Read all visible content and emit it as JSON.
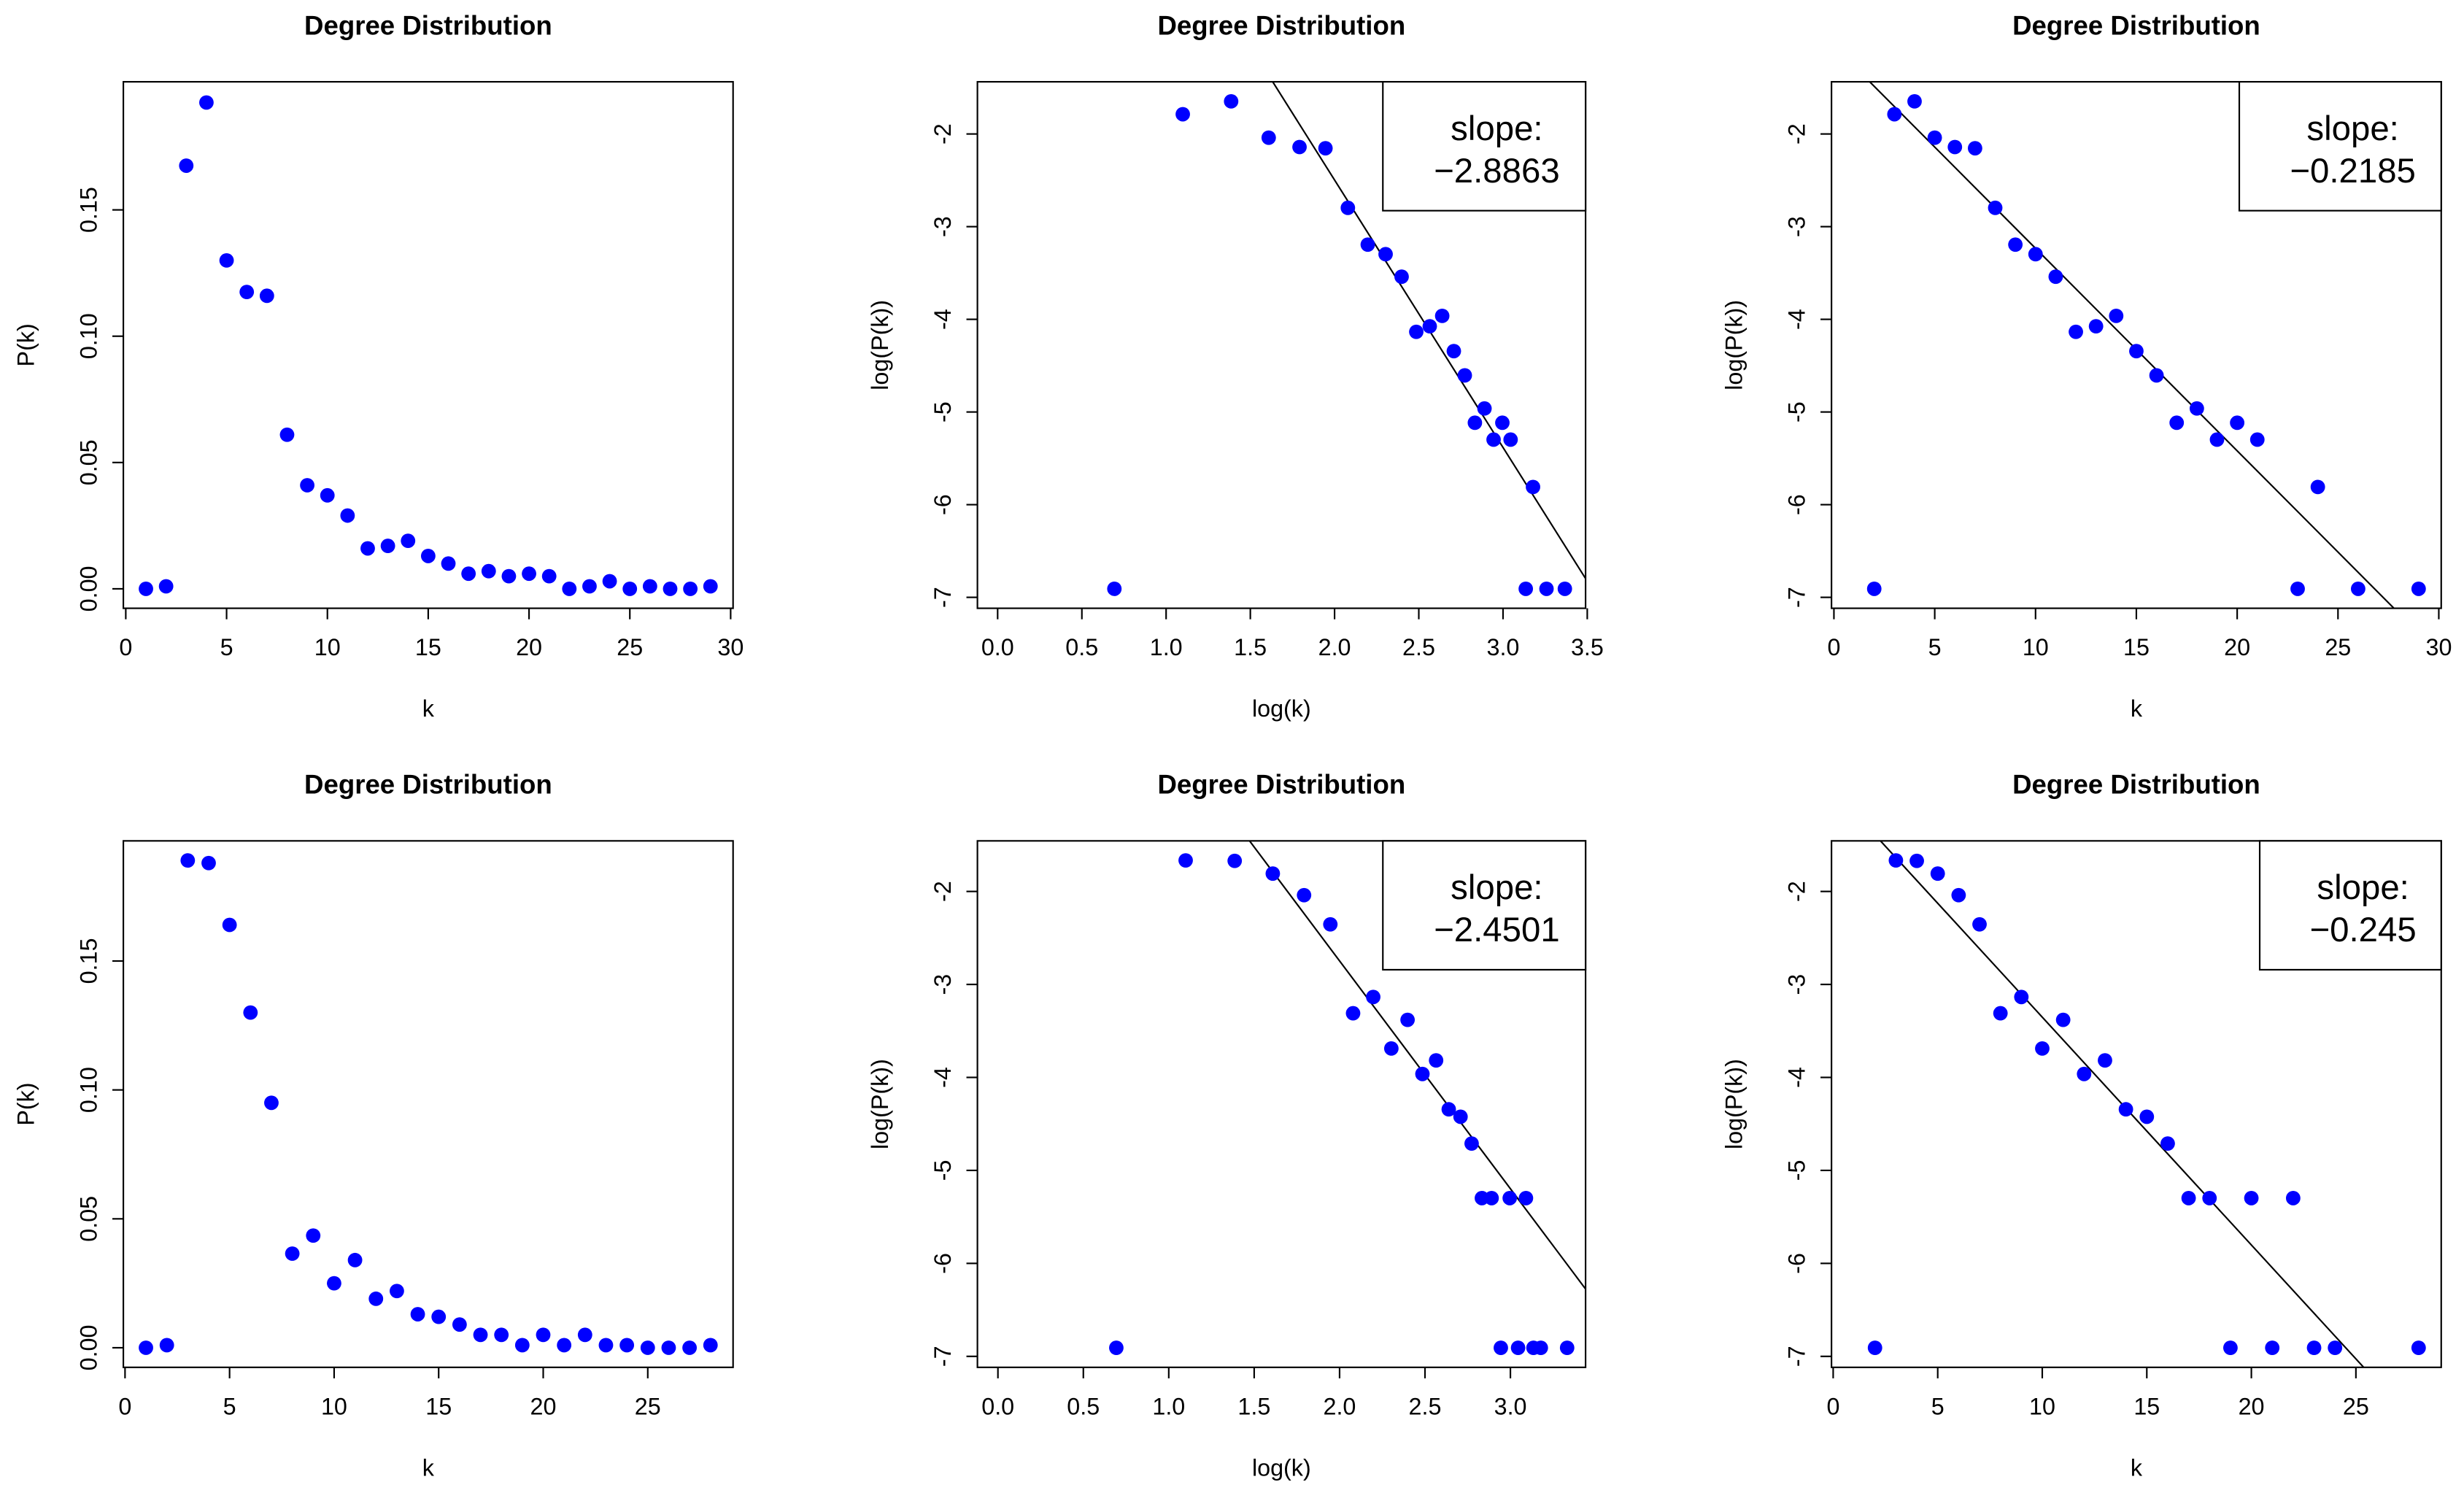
{
  "chart_data": [
    {
      "type": "scatter",
      "title": "Degree Distribution",
      "x_label": "k",
      "y_label": "P(k)",
      "color": "#0000ff",
      "x": [
        1,
        2,
        3,
        4,
        5,
        6,
        7,
        8,
        9,
        10,
        11,
        12,
        13,
        14,
        15,
        16,
        17,
        18,
        19,
        20,
        21,
        22,
        23,
        24,
        25,
        26,
        27,
        28,
        29
      ],
      "y": [
        0,
        0.001,
        0.1675,
        0.1925,
        0.13,
        0.1175,
        0.116,
        0.061,
        0.041,
        0.037,
        0.029,
        0.016,
        0.017,
        0.019,
        0.013,
        0.01,
        0.006,
        0.007,
        0.005,
        0.006,
        0.005,
        0,
        0.001,
        0.003,
        0,
        0.001,
        0,
        0,
        0.001
      ],
      "xlim": [
        -0.12,
        30.12
      ],
      "ylim": [
        -0.0077,
        0.2007
      ],
      "xticks": [
        0,
        5,
        10,
        15,
        20,
        25,
        30
      ],
      "yticks": [
        {
          "value": 0,
          "label": "0.00"
        },
        {
          "value": 0.05,
          "label": "0.05"
        },
        {
          "value": 0.1,
          "label": "0.10"
        },
        {
          "value": 0.15,
          "label": "0.15"
        }
      ]
    },
    {
      "type": "scatter",
      "title": "Degree Distribution",
      "x_label": "log(k)",
      "y_label": "log(P(k))",
      "color": "#0000ff",
      "x": [
        0.693,
        1.099,
        1.386,
        1.609,
        1.792,
        1.946,
        2.079,
        2.197,
        2.303,
        2.398,
        2.485,
        2.565,
        2.639,
        2.708,
        2.773,
        2.833,
        2.89,
        2.944,
        2.996,
        3.045,
        3.135,
        3.178,
        3.258,
        3.367
      ],
      "y": [
        -6.908,
        -1.787,
        -1.648,
        -2.04,
        -2.141,
        -2.154,
        -2.797,
        -3.194,
        -3.297,
        -3.54,
        -4.135,
        -4.075,
        -3.963,
        -4.343,
        -4.605,
        -5.116,
        -4.962,
        -5.298,
        -5.116,
        -5.298,
        -6.908,
        -5.809,
        -6.908,
        -6.908
      ],
      "xlim": [
        -0.12,
        3.49
      ],
      "ylim": [
        -7.118,
        -1.437
      ],
      "xticks": [
        {
          "value": 0,
          "label": "0.0"
        },
        0.5,
        {
          "value": 1,
          "label": "1.0"
        },
        1.5,
        {
          "value": 2,
          "label": "2.0"
        },
        2.5,
        {
          "value": 3,
          "label": "3.0"
        },
        3.5
      ],
      "yticks": [
        -2,
        -3,
        -4,
        -5,
        -6,
        -7
      ],
      "legend_title": "slope:",
      "fit": {
        "slope": -2.8863,
        "intercept": 3.276,
        "label": "−2.8863"
      }
    },
    {
      "type": "scatter",
      "title": "Degree Distribution",
      "x_label": "k",
      "y_label": "log(P(k))",
      "color": "#0000ff",
      "x": [
        2,
        3,
        4,
        5,
        6,
        7,
        8,
        9,
        10,
        11,
        12,
        13,
        14,
        15,
        16,
        17,
        18,
        19,
        20,
        21,
        23,
        24,
        26,
        29
      ],
      "y": [
        -6.908,
        -1.787,
        -1.648,
        -2.04,
        -2.141,
        -2.154,
        -2.797,
        -3.194,
        -3.297,
        -3.54,
        -4.135,
        -4.075,
        -3.963,
        -4.343,
        -4.605,
        -5.116,
        -4.962,
        -5.298,
        -5.116,
        -5.298,
        -6.908,
        -5.809,
        -6.908,
        -6.908
      ],
      "xlim": [
        -0.12,
        30.12
      ],
      "ylim": [
        -7.118,
        -1.437
      ],
      "xticks": [
        0,
        5,
        10,
        15,
        20,
        25,
        30
      ],
      "yticks": [
        -2,
        -3,
        -4,
        -5,
        -6,
        -7
      ],
      "legend_title": "slope:",
      "fit": {
        "slope": -0.2185,
        "intercept": -1.049,
        "label": "−0.2185"
      }
    },
    {
      "type": "scatter",
      "title": "Degree Distribution",
      "x_label": "k",
      "y_label": "P(k)",
      "color": "#0000ff",
      "x": [
        1,
        2,
        3,
        4,
        5,
        6,
        7,
        8,
        9,
        10,
        11,
        12,
        13,
        14,
        15,
        16,
        17,
        18,
        19,
        20,
        21,
        22,
        23,
        24,
        25,
        26,
        27,
        28
      ],
      "y": [
        0,
        0.001,
        0.189,
        0.188,
        0.164,
        0.13,
        0.095,
        0.0365,
        0.0435,
        0.025,
        0.034,
        0.019,
        0.022,
        0.013,
        0.012,
        0.009,
        0.005,
        0.005,
        0.001,
        0.005,
        0.001,
        0.005,
        0.001,
        0.001,
        0,
        0,
        0,
        0.001
      ],
      "xlim": [
        -0.08,
        29.08
      ],
      "ylim": [
        -0.0076,
        0.1966
      ],
      "xticks": [
        0,
        5,
        10,
        15,
        20,
        25
      ],
      "yticks": [
        {
          "value": 0,
          "label": "0.00"
        },
        {
          "value": 0.05,
          "label": "0.05"
        },
        {
          "value": 0.1,
          "label": "0.10"
        },
        {
          "value": 0.15,
          "label": "0.15"
        }
      ]
    },
    {
      "type": "scatter",
      "title": "Degree Distribution",
      "x_label": "log(k)",
      "y_label": "log(P(k))",
      "color": "#0000ff",
      "x": [
        0.693,
        1.099,
        1.386,
        1.609,
        1.792,
        1.946,
        2.079,
        2.197,
        2.303,
        2.398,
        2.485,
        2.565,
        2.639,
        2.708,
        2.773,
        2.833,
        2.89,
        2.944,
        2.996,
        3.045,
        3.091,
        3.135,
        3.178,
        3.332
      ],
      "y": [
        -6.908,
        -1.666,
        -1.671,
        -1.808,
        -2.04,
        -2.354,
        -3.31,
        -3.135,
        -3.689,
        -3.381,
        -3.963,
        -3.817,
        -4.343,
        -4.423,
        -4.711,
        -5.298,
        -5.298,
        -6.908,
        -5.298,
        -6.908,
        -5.298,
        -6.908,
        -6.908,
        -6.908
      ],
      "xlim": [
        -0.12,
        3.44
      ],
      "ylim": [
        -7.118,
        -1.456
      ],
      "xticks": [
        {
          "value": 0,
          "label": "0.0"
        },
        0.5,
        {
          "value": 1,
          "label": "1.0"
        },
        1.5,
        {
          "value": 2,
          "label": "2.0"
        },
        2.5,
        {
          "value": 3,
          "label": "3.0"
        }
      ],
      "yticks": [
        -2,
        -3,
        -4,
        -5,
        -6,
        -7
      ],
      "legend_title": "slope:",
      "fit": {
        "slope": -2.4501,
        "intercept": 2.153,
        "label": "−2.4501"
      }
    },
    {
      "type": "scatter",
      "title": "Degree Distribution",
      "x_label": "k",
      "y_label": "log(P(k))",
      "color": "#0000ff",
      "x": [
        2,
        3,
        4,
        5,
        6,
        7,
        8,
        9,
        10,
        11,
        12,
        13,
        14,
        15,
        16,
        17,
        18,
        19,
        20,
        21,
        22,
        23,
        24,
        28
      ],
      "y": [
        -6.908,
        -1.666,
        -1.671,
        -1.808,
        -2.04,
        -2.354,
        -3.31,
        -3.135,
        -3.689,
        -3.381,
        -3.963,
        -3.817,
        -4.343,
        -4.423,
        -4.711,
        -5.298,
        -5.298,
        -6.908,
        -5.298,
        -6.908,
        -5.298,
        -6.908,
        -6.908,
        -6.908
      ],
      "xlim": [
        -0.08,
        29.08
      ],
      "ylim": [
        -7.118,
        -1.456
      ],
      "xticks": [
        0,
        5,
        10,
        15,
        20,
        25
      ],
      "yticks": [
        -2,
        -3,
        -4,
        -5,
        -6,
        -7
      ],
      "legend_title": "slope:",
      "fit": {
        "slope": -0.245,
        "intercept": -0.902,
        "label": "−0.245"
      }
    }
  ]
}
